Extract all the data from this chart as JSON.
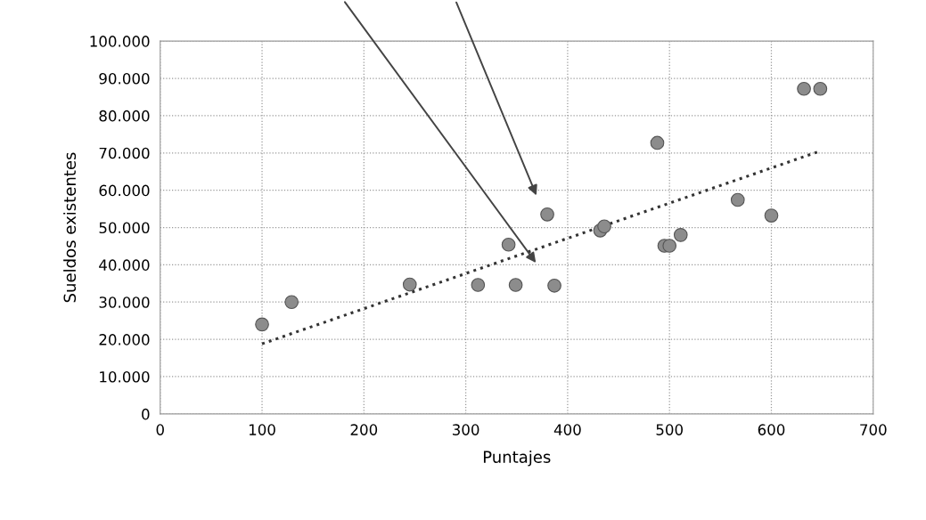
{
  "chart_data": {
    "type": "scatter",
    "xlabel": "Puntajes",
    "ylabel": "Sueldos existentes",
    "xlim": [
      0,
      700
    ],
    "xticks": [
      0,
      100,
      200,
      300,
      400,
      500,
      600,
      700
    ],
    "ylim": [
      0,
      100000
    ],
    "yticks": [
      {
        "value": 0,
        "label": "0"
      },
      {
        "value": 10000,
        "label": "10.000"
      },
      {
        "value": 20000,
        "label": "20.000"
      },
      {
        "value": 30000,
        "label": "30.000"
      },
      {
        "value": 40000,
        "label": "40.000"
      },
      {
        "value": 50000,
        "label": "50.000"
      },
      {
        "value": 60000,
        "label": "60.000"
      },
      {
        "value": 70000,
        "label": "70.000"
      },
      {
        "value": 80000,
        "label": "80.000"
      },
      {
        "value": 90000,
        "label": "90.000"
      },
      {
        "value": 100000,
        "label": "100.000"
      }
    ],
    "grid": true,
    "series": [
      {
        "marker": "circle",
        "color": "#8c8c8c",
        "x": [
          100,
          129,
          245,
          312,
          342,
          349,
          380,
          387,
          432,
          436,
          488,
          495,
          500,
          511,
          567,
          600,
          632,
          648
        ],
        "values": [
          24000,
          30000,
          34700,
          34600,
          45400,
          34600,
          53500,
          34400,
          49200,
          50300,
          72700,
          45100,
          45100,
          48000,
          57400,
          53200,
          87200,
          87200
        ]
      },
      {
        "type": "line",
        "color": "#333333",
        "line_style": "dotted",
        "x": [
          100,
          648
        ],
        "values": [
          18800,
          70500
        ]
      }
    ]
  }
}
